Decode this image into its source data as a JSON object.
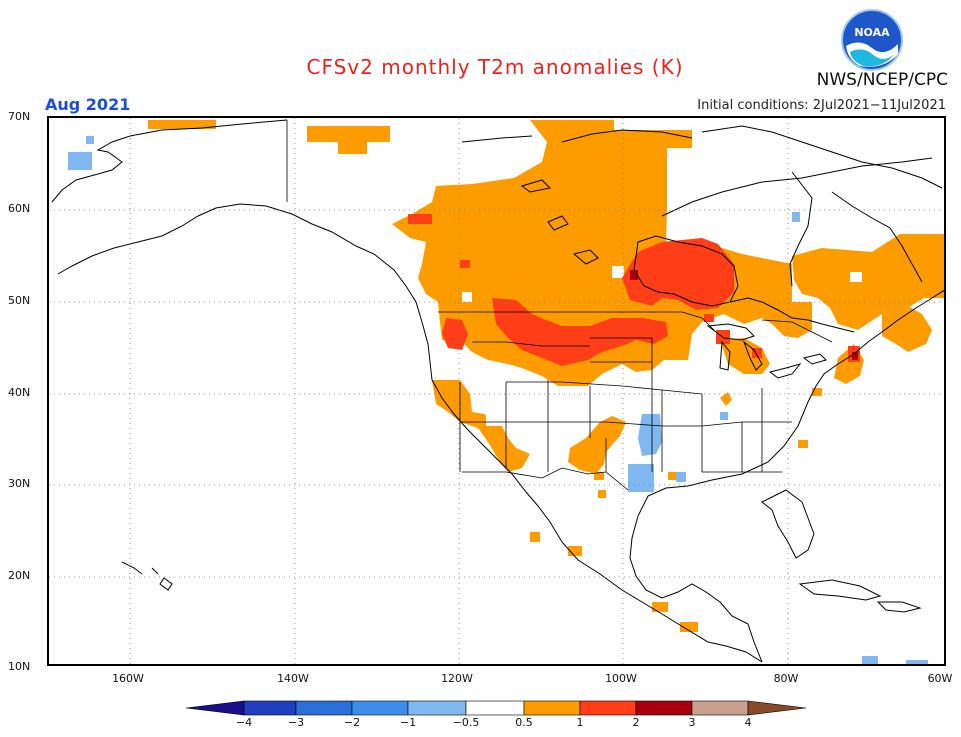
{
  "title": "CFSv2 monthly T2m anomalies (K)",
  "valid_month": "Aug 2021",
  "initial_conditions": "Initial conditions: 2Jul2021−11Jul2021",
  "agency": "NWS/NCEP/CPC",
  "logo_text": "NOAA",
  "lat_labels": [
    "70N",
    "60N",
    "50N",
    "40N",
    "30N",
    "20N",
    "10N"
  ],
  "lon_labels": [
    "160W",
    "140W",
    "120W",
    "100W",
    "80W",
    "60W"
  ],
  "colorbar": {
    "tick_labels": [
      "−4",
      "−3",
      "−2",
      "−1",
      "−0.5",
      "0.5",
      "1",
      "2",
      "3",
      "4"
    ],
    "colors": {
      "lt_m4": "#1a0f8a",
      "m4_m3": "#1f3fbf",
      "m3_m2": "#2a6fd6",
      "m2_m1": "#3d8ee8",
      "m1_m05": "#7fb8f0",
      "m05_05": "#ffffff",
      "p05_1": "#fd9c00",
      "p1_2": "#ff3d16",
      "p2_3": "#a8000b",
      "p3_4": "#c9a08f",
      "gt_4": "#8a4a2a"
    }
  },
  "anomaly_regions": [
    {
      "level": "0.5 to 1",
      "region": "Canadian Prairies, central Canada, Hudson Bay, Quebec, Maritimes"
    },
    {
      "level": "0.5 to 1",
      "region": "US Northwest, Great Basin, Desert Southwest, Rockies, Upper Midwest, Great Lakes"
    },
    {
      "level": "1 to 2",
      "region": "Northern Plains, Montana, Dakotas, southern Prairies, northern Ontario near Hudson Bay, New England"
    },
    {
      "level": "-1 to -0.5",
      "region": "Texas, Oklahoma, isolated spots in Alaska and Quebec"
    }
  ]
}
